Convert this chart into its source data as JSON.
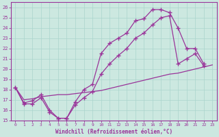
{
  "bg_color": "#cce8e0",
  "line_color": "#993399",
  "grid_color": "#aad4cc",
  "xlabel": "Windchill (Refroidissement éolien,°C)",
  "xlim": [
    -0.5,
    23.5
  ],
  "ylim": [
    15,
    26.5
  ],
  "xticks": [
    0,
    1,
    2,
    3,
    4,
    5,
    6,
    7,
    8,
    9,
    10,
    11,
    12,
    13,
    14,
    15,
    16,
    17,
    18,
    19,
    20,
    21,
    22,
    23
  ],
  "yticks": [
    15,
    16,
    17,
    18,
    19,
    20,
    21,
    22,
    23,
    24,
    25,
    26
  ],
  "curve1_x": [
    0,
    1,
    2,
    3,
    4,
    5,
    6,
    7,
    8,
    9,
    10,
    11,
    12,
    13,
    14,
    15,
    16,
    17,
    18,
    19,
    20,
    21,
    22
  ],
  "curve1_y": [
    18.2,
    16.6,
    16.6,
    17.2,
    15.8,
    15.2,
    15.2,
    16.8,
    18.0,
    18.5,
    21.5,
    22.5,
    23.0,
    23.5,
    24.7,
    24.9,
    25.8,
    25.8,
    25.5,
    24.0,
    22.0,
    22.0,
    20.5
  ],
  "curve2_x": [
    0,
    1,
    2,
    3,
    4,
    5,
    6,
    7,
    8,
    9,
    10,
    11,
    12,
    13,
    14,
    15,
    16,
    17,
    18,
    19,
    20,
    21,
    22
  ],
  "curve2_y": [
    18.2,
    16.7,
    16.9,
    17.5,
    16.0,
    15.2,
    15.2,
    16.5,
    17.2,
    17.8,
    19.5,
    20.5,
    21.3,
    22.0,
    23.0,
    23.5,
    24.3,
    25.0,
    25.2,
    20.5,
    21.0,
    21.5,
    20.3
  ],
  "curve3_x": [
    0,
    1,
    2,
    3,
    4,
    5,
    6,
    7,
    8,
    9,
    10,
    11,
    12,
    13,
    14,
    15,
    16,
    17,
    18,
    19,
    20,
    21,
    22,
    23
  ],
  "curve3_y": [
    18.2,
    17.0,
    17.1,
    17.3,
    17.4,
    17.5,
    17.5,
    17.6,
    17.7,
    17.8,
    17.9,
    18.1,
    18.3,
    18.5,
    18.7,
    18.9,
    19.1,
    19.3,
    19.5,
    19.6,
    19.8,
    20.0,
    20.2,
    20.4
  ]
}
